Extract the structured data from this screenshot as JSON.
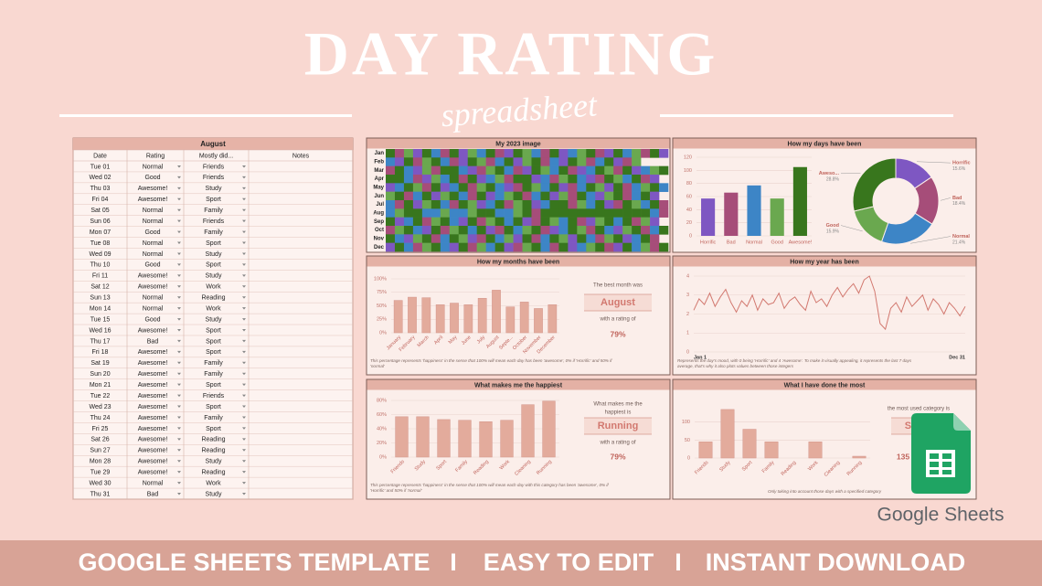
{
  "header": {
    "title": "DAY RATING",
    "subtitle": "spreadsheet"
  },
  "table": {
    "title": "August",
    "columns": [
      "Date",
      "Rating",
      "Mostly did...",
      "Notes"
    ],
    "rows": [
      [
        "Tue 01",
        "Normal",
        "Friends"
      ],
      [
        "Wed 02",
        "Good",
        "Friends"
      ],
      [
        "Thu 03",
        "Awesome!",
        "Study"
      ],
      [
        "Fri 04",
        "Awesome!",
        "Sport"
      ],
      [
        "Sat 05",
        "Normal",
        "Family"
      ],
      [
        "Sun 06",
        "Normal",
        "Friends"
      ],
      [
        "Mon 07",
        "Good",
        "Family"
      ],
      [
        "Tue 08",
        "Normal",
        "Sport"
      ],
      [
        "Wed 09",
        "Normal",
        "Study"
      ],
      [
        "Thu 10",
        "Good",
        "Sport"
      ],
      [
        "Fri 11",
        "Awesome!",
        "Study"
      ],
      [
        "Sat 12",
        "Awesome!",
        "Work"
      ],
      [
        "Sun 13",
        "Normal",
        "Reading"
      ],
      [
        "Mon 14",
        "Normal",
        "Work"
      ],
      [
        "Tue 15",
        "Good",
        "Study"
      ],
      [
        "Wed 16",
        "Awesome!",
        "Sport"
      ],
      [
        "Thu 17",
        "Bad",
        "Sport"
      ],
      [
        "Fri 18",
        "Awesome!",
        "Sport"
      ],
      [
        "Sat 19",
        "Awesome!",
        "Family"
      ],
      [
        "Sun 20",
        "Awesome!",
        "Family"
      ],
      [
        "Mon 21",
        "Awesome!",
        "Sport"
      ],
      [
        "Tue 22",
        "Awesome!",
        "Friends"
      ],
      [
        "Wed 23",
        "Awesome!",
        "Sport"
      ],
      [
        "Thu 24",
        "Awesome!",
        "Family"
      ],
      [
        "Fri 25",
        "Awesome!",
        "Sport"
      ],
      [
        "Sat 26",
        "Awesome!",
        "Reading"
      ],
      [
        "Sun 27",
        "Awesome!",
        "Reading"
      ],
      [
        "Mon 28",
        "Awesome!",
        "Study"
      ],
      [
        "Tue 29",
        "Awesome!",
        "Reading"
      ],
      [
        "Wed 30",
        "Normal",
        "Work"
      ],
      [
        "Thu 31",
        "Bad",
        "Study"
      ]
    ]
  },
  "chart_data": [
    {
      "type": "heatmap",
      "title": "My 2023 image",
      "categories": [
        "Jan",
        "Feb",
        "Mar",
        "Apr",
        "May",
        "Jun",
        "Jul",
        "Aug",
        "Sep",
        "Oct",
        "Nov",
        "Dec"
      ],
      "colors": [
        "#7e57c2",
        "#a64d79",
        "#3d85c6",
        "#6aa84f",
        "#38761d"
      ],
      "values": [
        [
          4,
          1,
          3,
          0,
          4,
          2,
          1,
          4,
          0,
          3,
          2,
          4,
          1,
          0,
          4,
          3,
          2,
          1,
          4,
          0,
          2,
          3,
          4,
          1,
          0,
          4,
          2,
          3,
          1,
          4,
          0
        ],
        [
          2,
          0,
          4,
          1,
          3,
          4,
          2,
          1,
          0,
          4,
          3,
          1,
          2,
          4,
          0,
          3,
          4,
          1,
          2,
          0,
          4,
          3,
          1,
          2,
          4,
          0,
          1,
          3,
          null,
          null,
          null
        ],
        [
          1,
          4,
          2,
          0,
          3,
          1,
          4,
          4,
          2,
          0,
          1,
          3,
          4,
          2,
          1,
          0,
          4,
          3,
          2,
          4,
          1,
          0,
          2,
          4,
          3,
          1,
          4,
          0,
          2,
          3,
          4
        ],
        [
          4,
          4,
          2,
          1,
          0,
          3,
          2,
          4,
          1,
          4,
          0,
          2,
          3,
          1,
          4,
          4,
          0,
          2,
          1,
          3,
          4,
          2,
          0,
          1,
          4,
          3,
          2,
          4,
          1,
          0,
          null
        ],
        [
          0,
          2,
          4,
          3,
          1,
          4,
          0,
          2,
          4,
          1,
          3,
          4,
          2,
          0,
          1,
          4,
          3,
          2,
          4,
          0,
          1,
          2,
          4,
          3,
          0,
          4,
          1,
          2,
          3,
          4,
          2
        ],
        [
          3,
          4,
          1,
          2,
          4,
          0,
          3,
          4,
          2,
          1,
          4,
          0,
          2,
          3,
          4,
          1,
          2,
          4,
          0,
          3,
          1,
          4,
          2,
          0,
          3,
          4,
          1,
          2,
          4,
          0,
          null
        ],
        [
          2,
          1,
          4,
          0,
          3,
          4,
          2,
          1,
          4,
          3,
          0,
          2,
          4,
          1,
          3,
          4,
          0,
          2,
          4,
          4,
          1,
          3,
          2,
          4,
          0,
          1,
          4,
          3,
          2,
          4,
          1
        ],
        [
          2,
          3,
          4,
          4,
          2,
          2,
          3,
          2,
          2,
          3,
          4,
          4,
          2,
          2,
          3,
          4,
          1,
          4,
          4,
          4,
          4,
          4,
          4,
          4,
          4,
          4,
          4,
          4,
          4,
          2,
          1
        ],
        [
          4,
          0,
          2,
          4,
          1,
          3,
          4,
          2,
          0,
          4,
          1,
          3,
          4,
          2,
          4,
          0,
          1,
          4,
          3,
          2,
          4,
          1,
          0,
          3,
          4,
          2,
          4,
          1,
          3,
          0,
          null
        ],
        [
          1,
          3,
          4,
          2,
          0,
          4,
          1,
          3,
          4,
          2,
          4,
          0,
          1,
          4,
          2,
          3,
          4,
          1,
          0,
          2,
          4,
          3,
          1,
          4,
          2,
          0,
          3,
          4,
          1,
          2,
          4
        ],
        [
          4,
          2,
          0,
          3,
          4,
          1,
          2,
          4,
          3,
          0,
          1,
          4,
          2,
          3,
          0,
          4,
          1,
          2,
          4,
          3,
          0,
          4,
          2,
          1,
          3,
          4,
          0,
          2,
          4,
          1,
          null
        ],
        [
          0,
          4,
          2,
          1,
          3,
          4,
          2,
          0,
          4,
          1,
          3,
          2,
          4,
          0,
          1,
          3,
          4,
          2,
          1,
          4,
          0,
          2,
          3,
          4,
          1,
          0,
          4,
          2,
          3,
          1,
          4
        ]
      ]
    },
    {
      "type": "bar",
      "title": "How my days have been",
      "categories": [
        "Horrific",
        "Bad",
        "Normal",
        "Good",
        "Awesome!"
      ],
      "values": [
        57,
        66,
        77,
        57,
        105
      ],
      "colors": [
        "#7e57c2",
        "#a64d79",
        "#3d85c6",
        "#6aa84f",
        "#38761d"
      ],
      "ylim": [
        0,
        120
      ],
      "yticks": [
        0,
        20,
        40,
        60,
        80,
        100,
        120
      ],
      "grid": true
    },
    {
      "type": "pie",
      "categories": [
        "Horrific",
        "Bad",
        "Normal",
        "Good",
        "Aweso..."
      ],
      "values": [
        15.6,
        18.4,
        21.4,
        15.9,
        28.8
      ],
      "value_labels": [
        "15.6%",
        "18.4%",
        "21.4%",
        "15.9%",
        "28.8%"
      ],
      "colors": [
        "#7e57c2",
        "#a64d79",
        "#3d85c6",
        "#6aa84f",
        "#38761d"
      ]
    },
    {
      "type": "bar",
      "title": "How my months have been",
      "categories": [
        "January",
        "February",
        "March",
        "April",
        "May",
        "June",
        "July",
        "August",
        "Septe...",
        "October",
        "November",
        "December"
      ],
      "values": [
        60,
        66,
        65,
        52,
        55,
        52,
        64,
        79,
        48,
        57,
        45,
        52
      ],
      "color": "#e3ab9c",
      "ylim": [
        0,
        100
      ],
      "yticks": [
        {
          "value": 0,
          "label": "0%"
        },
        {
          "value": 25,
          "label": "25%"
        },
        {
          "value": 50,
          "label": "50%"
        },
        {
          "value": 75,
          "label": "75%"
        },
        {
          "value": 100,
          "label": "100%"
        }
      ],
      "grid": true,
      "highlight": {
        "lead": [
          "The best month was"
        ],
        "name": "August",
        "mid": "with a rating of",
        "figure": "79%"
      },
      "note": [
        "This percentage represents 'happiness' in the sense that 100% will mean each day has been 'awesome', 0% if 'Horrific' and 50% if",
        "'normal'"
      ]
    },
    {
      "type": "line",
      "title": "How my year has been",
      "categories": [
        "Jan 1",
        null,
        null,
        null,
        null,
        null,
        null,
        null,
        null,
        null,
        null,
        null,
        null,
        null,
        null,
        null,
        null,
        null,
        null,
        null,
        null,
        null,
        null,
        null,
        null,
        null,
        null,
        null,
        null,
        null,
        null,
        null,
        null,
        null,
        null,
        null,
        null,
        null,
        null,
        null,
        null,
        null,
        null,
        null,
        null,
        null,
        null,
        null,
        null,
        null,
        null,
        "Dec 31"
      ],
      "values": [
        2.2,
        2.8,
        2.5,
        3.1,
        2.4,
        2.9,
        3.3,
        2.6,
        2.1,
        2.7,
        2.4,
        3.0,
        2.2,
        2.8,
        2.5,
        2.6,
        3.1,
        2.3,
        2.7,
        2.9,
        2.5,
        2.2,
        3.2,
        2.6,
        2.8,
        2.4,
        3.0,
        3.4,
        2.9,
        3.3,
        3.6,
        3.1,
        3.8,
        4.0,
        3.2,
        1.5,
        1.2,
        2.3,
        2.6,
        2.1,
        2.9,
        2.4,
        2.7,
        3.0,
        2.2,
        2.8,
        2.5,
        2.0,
        2.6,
        2.3,
        1.9,
        2.4
      ],
      "color": "#d2786f",
      "ylim": [
        0,
        4
      ],
      "yticks": [
        0,
        1,
        2,
        3,
        4
      ],
      "grid": true,
      "note": [
        "Represents the day's mood, with 0 being 'Horrific' and 4 'Awesome'. To make it visually appealing, it represents the last 7 days",
        "average, that's why it also plots values between those integers"
      ]
    },
    {
      "type": "bar",
      "title": "What makes me the happiest",
      "categories": [
        "Friends",
        "Study",
        "Sport",
        "Family",
        "Reading",
        "Work",
        "Cleaning",
        "Running"
      ],
      "values": [
        57,
        57,
        53,
        52,
        50,
        52,
        74,
        79
      ],
      "color": "#e3ab9c",
      "ylim": [
        0,
        80
      ],
      "yticks": [
        {
          "value": 0,
          "label": "0%"
        },
        {
          "value": 20,
          "label": "20%"
        },
        {
          "value": 40,
          "label": "40%"
        },
        {
          "value": 60,
          "label": "60%"
        },
        {
          "value": 80,
          "label": "80%"
        }
      ],
      "grid": true,
      "highlight": {
        "lead": [
          "What makes me the",
          "happiest is"
        ],
        "name": "Running",
        "mid": "with a rating of",
        "figure": "79%"
      },
      "note": [
        "This percentage represents 'happiness' in the sense that 100% will mean each day with this category has been 'awesome', 0% if",
        "'Horrific' and 50% if 'normal'"
      ]
    },
    {
      "type": "bar",
      "title": "What I have done the most",
      "categories": [
        "Friends",
        "Study",
        "Sport",
        "Family",
        "Reading",
        "Work",
        "Cleaning",
        "Running"
      ],
      "values": [
        45,
        135,
        80,
        45,
        0,
        45,
        0,
        5
      ],
      "color": "#e3ab9c",
      "ylim": [
        0,
        150
      ],
      "yticks": [
        0,
        50,
        100
      ],
      "grid": true,
      "highlight": {
        "lead": [
          "the most used category is"
        ],
        "name": "Study",
        "figure": "135"
      },
      "note": [
        "Only taking into account those days with a specified category"
      ]
    }
  ],
  "logo": {
    "text": "Google Sheets"
  },
  "footer": {
    "items": [
      "GOOGLE SHEETS TEMPLATE",
      "I",
      "EASY TO EDIT",
      "I",
      "INSTANT DOWNLOAD"
    ]
  }
}
